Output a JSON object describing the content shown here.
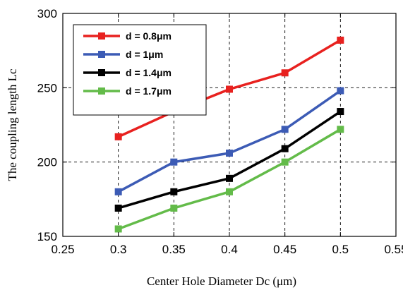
{
  "chart_data": {
    "type": "line",
    "title": "",
    "xlabel": "Center Hole Diameter Dc (μm)",
    "ylabel": "The coupling length  Lc",
    "xlim": [
      0.25,
      0.55
    ],
    "ylim": [
      150,
      300
    ],
    "x_ticks": [
      "0.25",
      "0.3",
      "0.35",
      "0.4",
      "0.45",
      "0.5",
      "0.55"
    ],
    "x_tick_values": [
      0.25,
      0.3,
      0.35,
      0.4,
      0.45,
      0.5,
      0.55
    ],
    "y_ticks": [
      "150",
      "200",
      "250",
      "300"
    ],
    "y_tick_values": [
      150,
      200,
      250,
      300
    ],
    "grid": "dashed",
    "legend_position": "top-left",
    "x": [
      0.3,
      0.35,
      0.4,
      0.45,
      0.5
    ],
    "series": [
      {
        "name": "d = 0.8μm",
        "color": "#e8211f",
        "values": [
          217,
          234,
          249,
          260,
          282
        ]
      },
      {
        "name": "d = 1μm",
        "color": "#3c5bb5",
        "values": [
          180,
          200,
          206,
          222,
          248
        ]
      },
      {
        "name": "d = 1.4μm",
        "color": "#000000",
        "values": [
          169,
          180,
          189,
          209,
          234
        ]
      },
      {
        "name": "d = 1.7μm",
        "color": "#63bb49",
        "values": [
          155,
          169,
          180,
          200,
          222
        ]
      }
    ]
  }
}
